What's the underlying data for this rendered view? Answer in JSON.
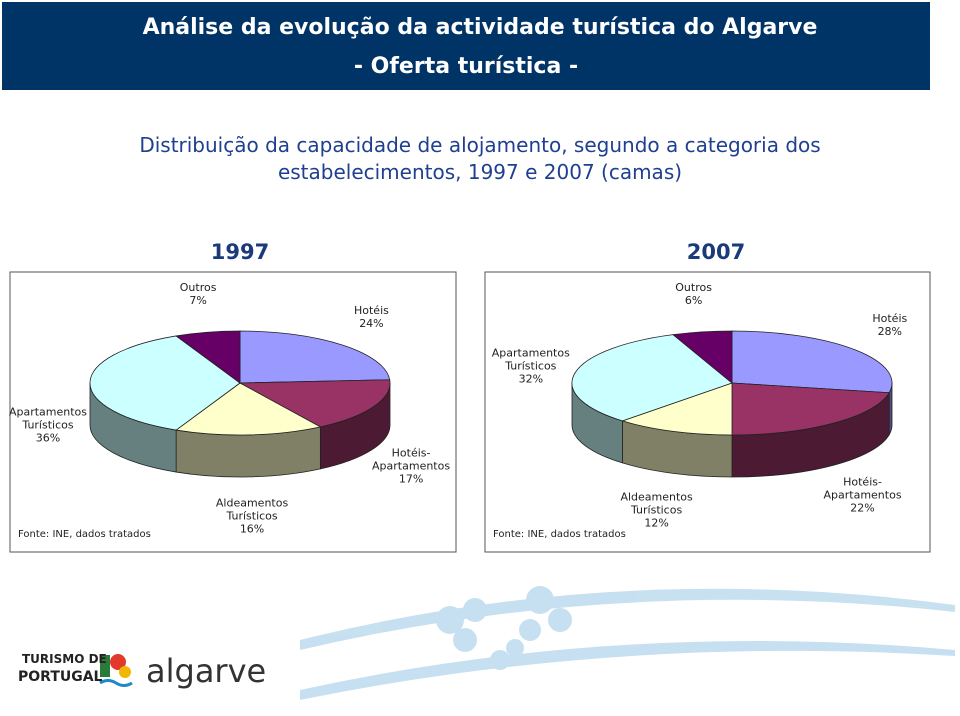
{
  "header": {
    "title": "Análise da evolução da actividade turística do Algarve",
    "subtitle": "- Oferta turística -"
  },
  "heading": "Distribuição da capacidade de alojamento, segundo a categoria dos estabelecimentos, 1997 e 2007 (camas)",
  "chart_data": [
    {
      "type": "pie",
      "title": "1997",
      "categories": [
        "Hotéis",
        "Hotéis-Apartamentos",
        "Aldeamentos Turísticos",
        "Apartamentos Turísticos",
        "Outros"
      ],
      "values": [
        24,
        17,
        16,
        36,
        7
      ],
      "value_labels": [
        "24%",
        "17%",
        "16%",
        "36%",
        "7%"
      ],
      "colors": [
        "#9999ff",
        "#993366",
        "#ffffcc",
        "#ccffff",
        "#660066"
      ],
      "source": "Fonte: INE, dados tratados"
    },
    {
      "type": "pie",
      "title": "2007",
      "categories": [
        "Hotéis",
        "Hotéis-Apartamentos",
        "Aldeamentos Turísticos",
        "Apartamentos Turísticos",
        "Outros"
      ],
      "values": [
        28,
        22,
        12,
        32,
        6
      ],
      "value_labels": [
        "28%",
        "22%",
        "12%",
        "32%",
        "6%"
      ],
      "colors": [
        "#9999ff",
        "#993366",
        "#ffffcc",
        "#ccffff",
        "#660066"
      ],
      "source": "Fonte: INE, dados tratados"
    }
  ],
  "footer": {
    "logo_line1": "TURISMO DE",
    "logo_line2": "PORTUGAL",
    "logo_word": "algarve"
  }
}
